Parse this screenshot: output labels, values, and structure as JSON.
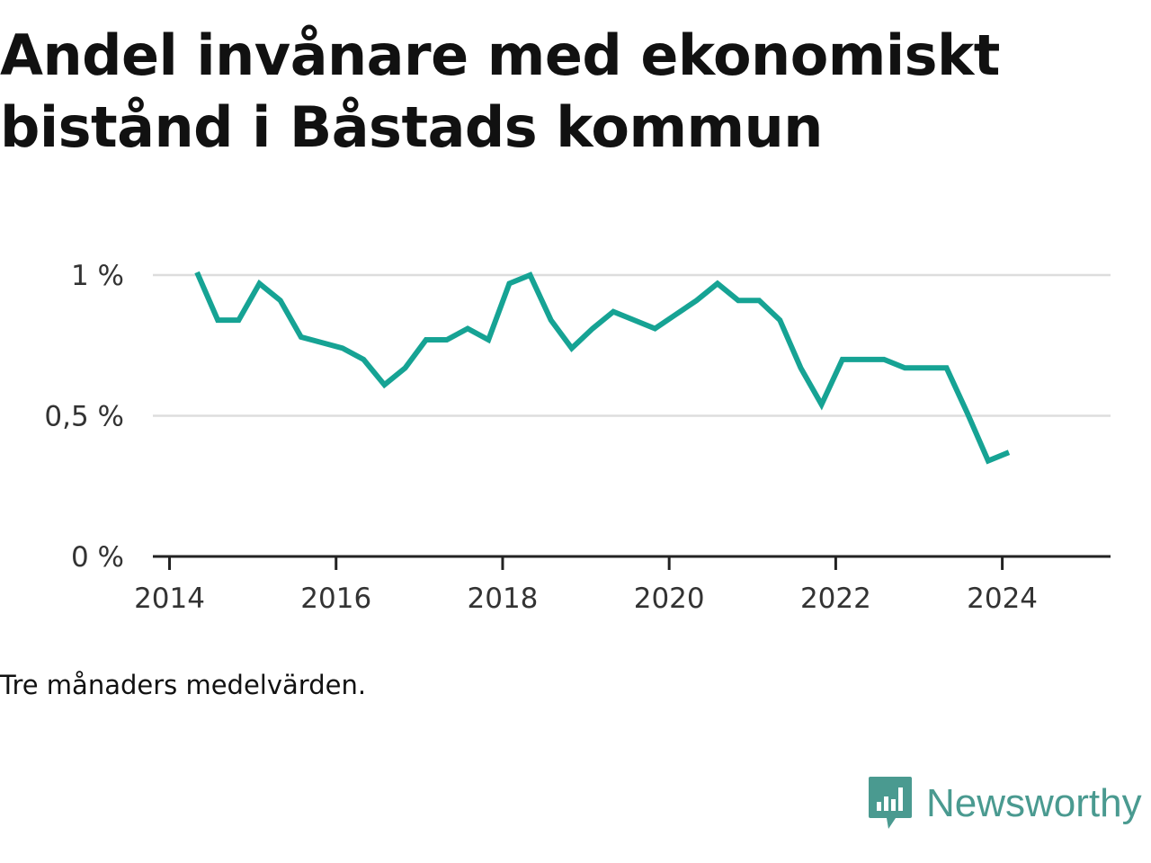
{
  "title": "Andel invånare med ekonomiskt bistånd i Båstads kommun",
  "note": "Tre månaders medelvärden.",
  "brand": {
    "name": "Newsworthy",
    "icon": "newsworthy-logo-icon",
    "color": "#4a9a90"
  },
  "chart_data": {
    "type": "line",
    "title": "Andel invånare med ekonomiskt bistånd i Båstads kommun",
    "xlabel": "",
    "ylabel": "",
    "xlim": [
      2013.8,
      2025.3
    ],
    "ylim": [
      0,
      1.0
    ],
    "grid": true,
    "legend": "none",
    "color": "#16a394",
    "yticks": [
      {
        "value": 0,
        "label": "0 %"
      },
      {
        "value": 0.5,
        "label": "0,5 %"
      },
      {
        "value": 1.0,
        "label": "1 %"
      }
    ],
    "xticks": [
      {
        "value": 2014,
        "label": "2014"
      },
      {
        "value": 2016,
        "label": "2016"
      },
      {
        "value": 2018,
        "label": "2018"
      },
      {
        "value": 2020,
        "label": "2020"
      },
      {
        "value": 2022,
        "label": "2022"
      },
      {
        "value": 2024,
        "label": "2024"
      }
    ],
    "series": [
      {
        "x": [
          2014.33,
          2014.58,
          2014.83,
          2015.08,
          2015.33,
          2015.58,
          2015.83,
          2016.08,
          2016.33,
          2016.58,
          2016.83,
          2017.08,
          2017.33,
          2017.58,
          2017.83,
          2018.08,
          2018.33,
          2018.58,
          2018.83,
          2019.08,
          2019.33,
          2019.58,
          2019.83,
          2020.08,
          2020.33,
          2020.58,
          2020.83,
          2021.08,
          2021.33,
          2021.58,
          2021.83,
          2022.08,
          2022.33,
          2022.58,
          2022.83,
          2023.08,
          2023.33,
          2023.58,
          2023.83,
          2024.08
        ],
        "values": [
          1.01,
          0.84,
          0.84,
          0.97,
          0.91,
          0.78,
          0.76,
          0.74,
          0.7,
          0.61,
          0.67,
          0.77,
          0.77,
          0.81,
          0.77,
          0.97,
          1.0,
          0.84,
          0.74,
          0.81,
          0.87,
          0.84,
          0.81,
          0.86,
          0.91,
          0.97,
          0.91,
          0.91,
          0.84,
          0.67,
          0.54,
          0.7,
          0.7,
          0.7,
          0.67,
          0.67,
          0.67,
          0.51,
          0.34,
          0.37
        ]
      }
    ]
  }
}
